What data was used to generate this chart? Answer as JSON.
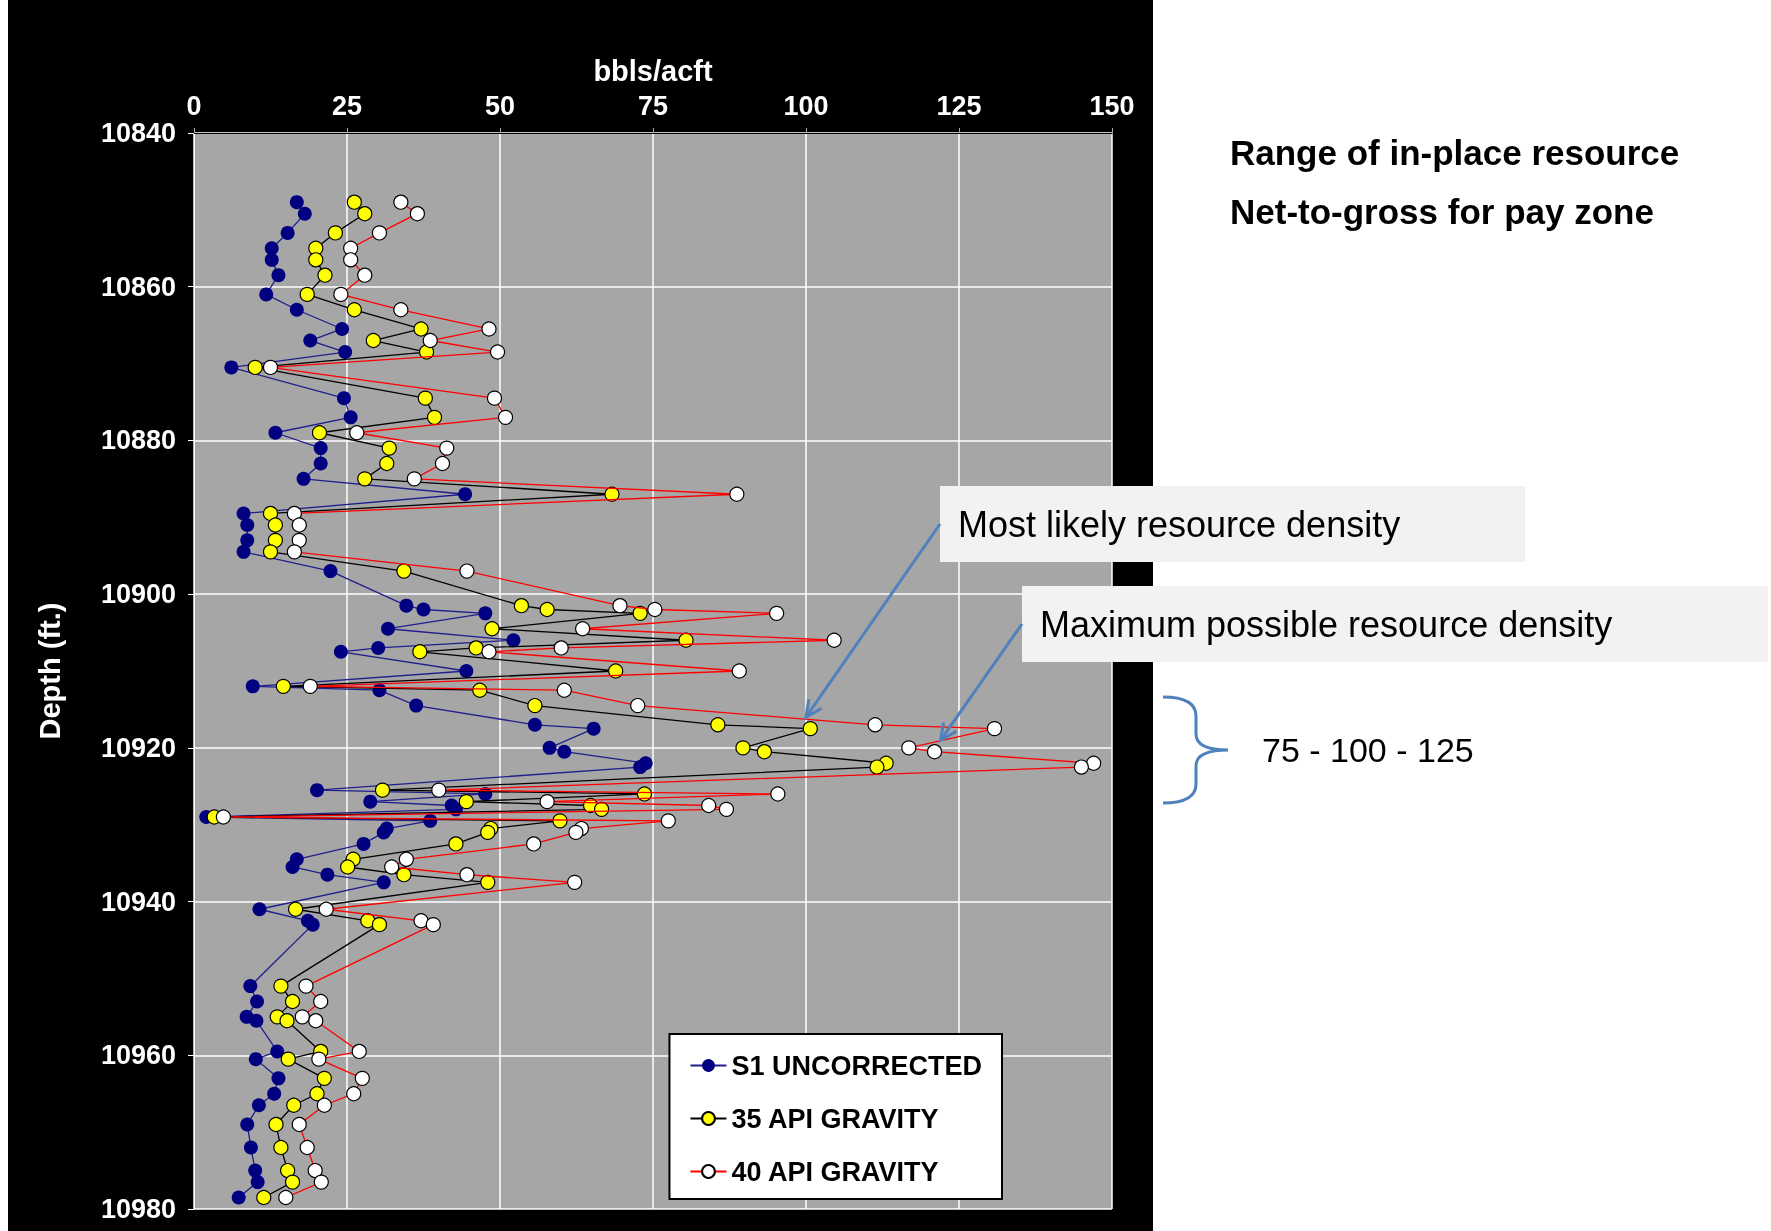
{
  "chart_data": {
    "type": "line",
    "xlabel": "bbls/acft",
    "ylabel": "Depth (ft.)",
    "xlim": [
      0,
      150
    ],
    "xticks": [
      0,
      25,
      50,
      75,
      100,
      125,
      150
    ],
    "ylim": [
      10980,
      10840
    ],
    "yticks": [
      10840,
      10860,
      10880,
      10900,
      10920,
      10940,
      10960,
      10980
    ],
    "grid": true,
    "legend": "bottom right",
    "marker": "circle",
    "line_style": "solid",
    "annotations": [
      "Range of in-place resource",
      "Net-to-gross for pay zone",
      "75 - 100 - 125",
      {
        "text": "Most likely resource density",
        "x": 100,
        "y": 10916
      },
      {
        "text": "Maximum possible resource density",
        "x": 122,
        "y": 10919
      }
    ],
    "series": [
      {
        "name": "S1 UNCORRECTED",
        "color": "#000080",
        "x": [
          16.8,
          18.1,
          15.3,
          12.7,
          12.7,
          13.8,
          11.8,
          16.8,
          24.2,
          19.0,
          24.7,
          6.1,
          24.5,
          25.6,
          13.3,
          20.7,
          20.7,
          17.9,
          44.3,
          8.1,
          8.7,
          8.7,
          8.1,
          22.3,
          34.7,
          37.5,
          47.6,
          31.7,
          52.2,
          30.1,
          24.0,
          44.5,
          9.6,
          30.3,
          36.3,
          55.7,
          65.3,
          58.1,
          60.5,
          73.8,
          72.9,
          20.1,
          47.6,
          28.8,
          42.1,
          42.8,
          2.0,
          38.6,
          31.5,
          31.0,
          27.7,
          16.8,
          16.1,
          21.8,
          31.0,
          10.7,
          18.6,
          19.4,
          9.2,
          10.3,
          8.6,
          10.2,
          13.6,
          10.1,
          13.8,
          13.1,
          10.6,
          8.7,
          9.3,
          10.0,
          10.4,
          7.3
        ],
        "values": [
          10849,
          10850.5,
          10853,
          10855,
          10856.5,
          10858.5,
          10861,
          10863,
          10865.5,
          10867,
          10868.5,
          10870.5,
          10874.5,
          10877,
          10879,
          10881,
          10883,
          10885,
          10887,
          10889.5,
          10891,
          10893,
          10894.5,
          10897,
          10901.5,
          10902,
          10902.5,
          10904.5,
          10906,
          10907,
          10907.5,
          10910,
          10912,
          10912.5,
          10914.5,
          10917,
          10917.5,
          10920,
          10920.5,
          10922,
          10922.5,
          10925.5,
          10926,
          10927,
          10927.5,
          10928,
          10929,
          10929.5,
          10930.5,
          10931,
          10932.5,
          10934.5,
          10935.5,
          10936.5,
          10937.5,
          10941,
          10942.5,
          10943,
          10951,
          10953,
          10955,
          10955.5,
          10959.5,
          10960.5,
          10963,
          10965,
          10966.5,
          10969,
          10972,
          10975,
          10976.5,
          10978.5
        ]
      },
      {
        "name": "35 API GRAVITY",
        "color": "#ffff00",
        "x": [
          26.2,
          27.9,
          23.1,
          19.9,
          19.9,
          21.4,
          18.5,
          26.2,
          37.1,
          29.3,
          38.0,
          10.0,
          37.8,
          39.3,
          20.5,
          31.9,
          31.5,
          27.9,
          68.3,
          12.5,
          13.3,
          13.3,
          12.5,
          34.3,
          53.5,
          57.7,
          72.9,
          48.7,
          80.4,
          46.1,
          36.9,
          68.9,
          14.6,
          46.7,
          55.7,
          85.6,
          100.7,
          89.7,
          93.2,
          113.1,
          111.6,
          30.8,
          73.6,
          44.5,
          64.8,
          66.6,
          3.3,
          59.8,
          48.5,
          48.0,
          42.8,
          26.0,
          25.1,
          34.3,
          48.0,
          16.6,
          28.4,
          30.3,
          14.2,
          16.1,
          13.6,
          15.2,
          20.7,
          15.4,
          21.3,
          20.1,
          16.3,
          13.4,
          14.2,
          15.3,
          16.1,
          11.4
        ],
        "values": [
          10849,
          10850.5,
          10853,
          10855,
          10856.5,
          10858.5,
          10861,
          10863,
          10865.5,
          10867,
          10868.5,
          10870.5,
          10874.5,
          10877,
          10879,
          10881,
          10883,
          10885,
          10887,
          10889.5,
          10891,
          10893,
          10894.5,
          10897,
          10901.5,
          10902,
          10902.5,
          10904.5,
          10906,
          10907,
          10907.5,
          10910,
          10912,
          10912.5,
          10914.5,
          10917,
          10917.5,
          10920,
          10920.5,
          10922,
          10922.5,
          10925.5,
          10926,
          10927,
          10927.5,
          10928,
          10929,
          10929.5,
          10930.5,
          10931,
          10932.5,
          10934.5,
          10935.5,
          10936.5,
          10937.5,
          10941,
          10942.5,
          10943,
          10951,
          10953,
          10955,
          10955.5,
          10959.5,
          10960.5,
          10963,
          10965,
          10966.5,
          10969,
          10972,
          10975,
          10976.5,
          10978.5
        ]
      },
      {
        "name": "40 API GRAVITY",
        "color": "#ffffff",
        "x": [
          33.8,
          36.5,
          30.3,
          25.6,
          25.6,
          27.9,
          24.0,
          33.8,
          48.2,
          38.6,
          49.6,
          12.5,
          49.1,
          50.9,
          26.6,
          41.3,
          40.6,
          36.0,
          88.7,
          16.4,
          17.2,
          17.2,
          16.4,
          44.6,
          69.6,
          75.3,
          95.2,
          63.5,
          104.6,
          60.0,
          48.2,
          89.1,
          19.0,
          60.5,
          72.5,
          111.3,
          130.8,
          116.8,
          121.0,
          147.0,
          145.0,
          40.0,
          95.4,
          57.7,
          84.1,
          87.0,
          4.8,
          77.5,
          63.3,
          62.4,
          55.5,
          34.7,
          32.3,
          44.6,
          62.2,
          21.6,
          37.1,
          39.1,
          18.3,
          20.7,
          17.7,
          19.9,
          27.0,
          20.4,
          27.5,
          26.1,
          21.3,
          17.2,
          18.5,
          19.8,
          20.8,
          15.0
        ],
        "values": [
          10849,
          10850.5,
          10853,
          10855,
          10856.5,
          10858.5,
          10861,
          10863,
          10865.5,
          10867,
          10868.5,
          10870.5,
          10874.5,
          10877,
          10879,
          10881,
          10883,
          10885,
          10887,
          10889.5,
          10891,
          10893,
          10894.5,
          10897,
          10901.5,
          10902,
          10902.5,
          10904.5,
          10906,
          10907,
          10907.5,
          10910,
          10912,
          10912.5,
          10914.5,
          10917,
          10917.5,
          10920,
          10920.5,
          10922,
          10922.5,
          10925.5,
          10926,
          10927,
          10927.5,
          10928,
          10929,
          10929.5,
          10930.5,
          10931,
          10932.5,
          10934.5,
          10935.5,
          10936.5,
          10937.5,
          10941,
          10942.5,
          10943,
          10951,
          10953,
          10955,
          10955.5,
          10959.5,
          10960.5,
          10963,
          10965,
          10966.5,
          10969,
          10972,
          10975,
          10976.5,
          10978.5
        ]
      }
    ]
  }
}
